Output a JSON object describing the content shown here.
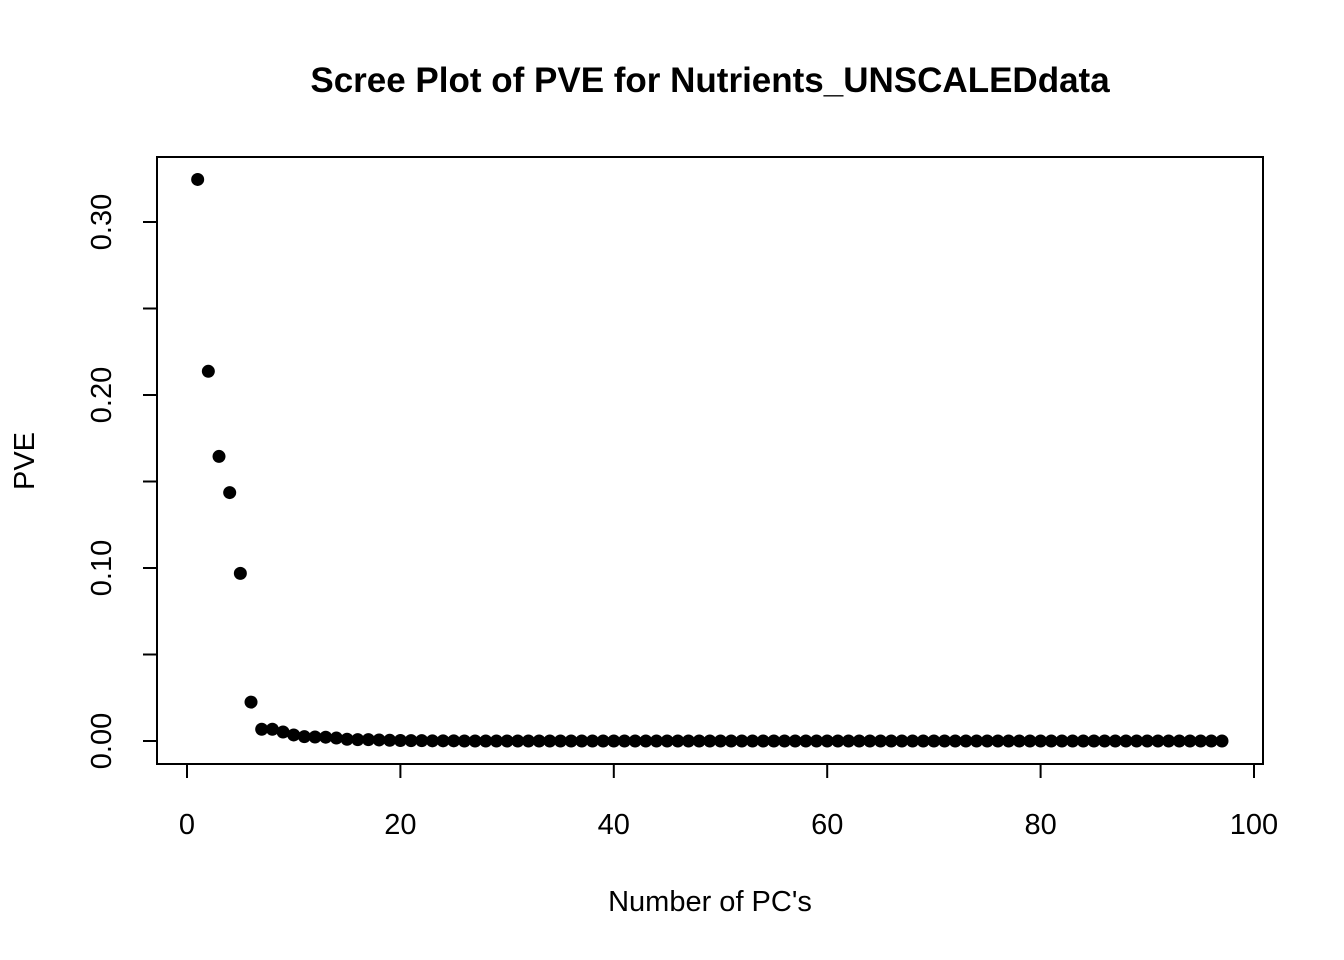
{
  "chart_data": {
    "type": "scatter",
    "title": "Scree Plot of PVE for Nutrients_UNSCALEDdata",
    "xlabel": "Number of PC's",
    "ylabel": "PVE",
    "xlim": [
      0,
      100
    ],
    "ylim": [
      0,
      0.32
    ],
    "x_ticks": [
      "0",
      "20",
      "40",
      "60",
      "80",
      "100"
    ],
    "y_ticks": [
      "0.00",
      "0.10",
      "0.20",
      "0.30"
    ],
    "y_minor_ticks": [
      0.05,
      0.15,
      0.25
    ],
    "grid": false,
    "legend": "none",
    "marker_color": "#000000",
    "points": [
      [
        1,
        0.3246
      ],
      [
        2,
        0.2137
      ],
      [
        3,
        0.1645
      ],
      [
        4,
        0.1436
      ],
      [
        5,
        0.0969
      ],
      [
        6,
        0.0225
      ],
      [
        7,
        0.0068
      ],
      [
        8,
        0.0068
      ],
      [
        9,
        0.0052
      ],
      [
        10,
        0.0035
      ],
      [
        11,
        0.0025
      ],
      [
        12,
        0.0023
      ],
      [
        13,
        0.0022
      ],
      [
        14,
        0.0017
      ],
      [
        15,
        0.001
      ],
      [
        16,
        0.0008
      ],
      [
        17,
        0.0008
      ],
      [
        18,
        0.0006
      ],
      [
        19,
        0.0004
      ],
      [
        20,
        0.0003
      ],
      [
        21,
        0.0002
      ],
      [
        22,
        0.0002
      ],
      [
        23,
        0.0001
      ],
      [
        24,
        0.0001
      ],
      [
        25,
        0.0001
      ],
      [
        26,
        0
      ],
      [
        27,
        0
      ],
      [
        28,
        0
      ],
      [
        29,
        0
      ],
      [
        30,
        0
      ],
      [
        31,
        0
      ],
      [
        32,
        0
      ],
      [
        33,
        0
      ],
      [
        34,
        0
      ],
      [
        35,
        0
      ],
      [
        36,
        0
      ],
      [
        37,
        0
      ],
      [
        38,
        0
      ],
      [
        39,
        0
      ],
      [
        40,
        0
      ],
      [
        41,
        0
      ],
      [
        42,
        0
      ],
      [
        43,
        0
      ],
      [
        44,
        0
      ],
      [
        45,
        0
      ],
      [
        46,
        0
      ],
      [
        47,
        0
      ],
      [
        48,
        0
      ],
      [
        49,
        0
      ],
      [
        50,
        0
      ],
      [
        51,
        0
      ],
      [
        52,
        0
      ],
      [
        53,
        0
      ],
      [
        54,
        0
      ],
      [
        55,
        0
      ],
      [
        56,
        0
      ],
      [
        57,
        0
      ],
      [
        58,
        0
      ],
      [
        59,
        0
      ],
      [
        60,
        0
      ],
      [
        61,
        0
      ],
      [
        62,
        0
      ],
      [
        63,
        0
      ],
      [
        64,
        0
      ],
      [
        65,
        0
      ],
      [
        66,
        0
      ],
      [
        67,
        0
      ],
      [
        68,
        0
      ],
      [
        69,
        0
      ],
      [
        70,
        0
      ],
      [
        71,
        0
      ],
      [
        72,
        0
      ],
      [
        73,
        0
      ],
      [
        74,
        0
      ],
      [
        75,
        0
      ],
      [
        76,
        0
      ],
      [
        77,
        0
      ],
      [
        78,
        0
      ],
      [
        79,
        0
      ],
      [
        80,
        0
      ],
      [
        81,
        0
      ],
      [
        82,
        0
      ],
      [
        83,
        0
      ],
      [
        84,
        0
      ],
      [
        85,
        0
      ],
      [
        86,
        0
      ],
      [
        87,
        0
      ],
      [
        88,
        0
      ],
      [
        89,
        0
      ],
      [
        90,
        0
      ],
      [
        91,
        0
      ],
      [
        92,
        0
      ],
      [
        93,
        0
      ],
      [
        94,
        0
      ],
      [
        95,
        0
      ],
      [
        96,
        0
      ],
      [
        97,
        0
      ]
    ]
  }
}
